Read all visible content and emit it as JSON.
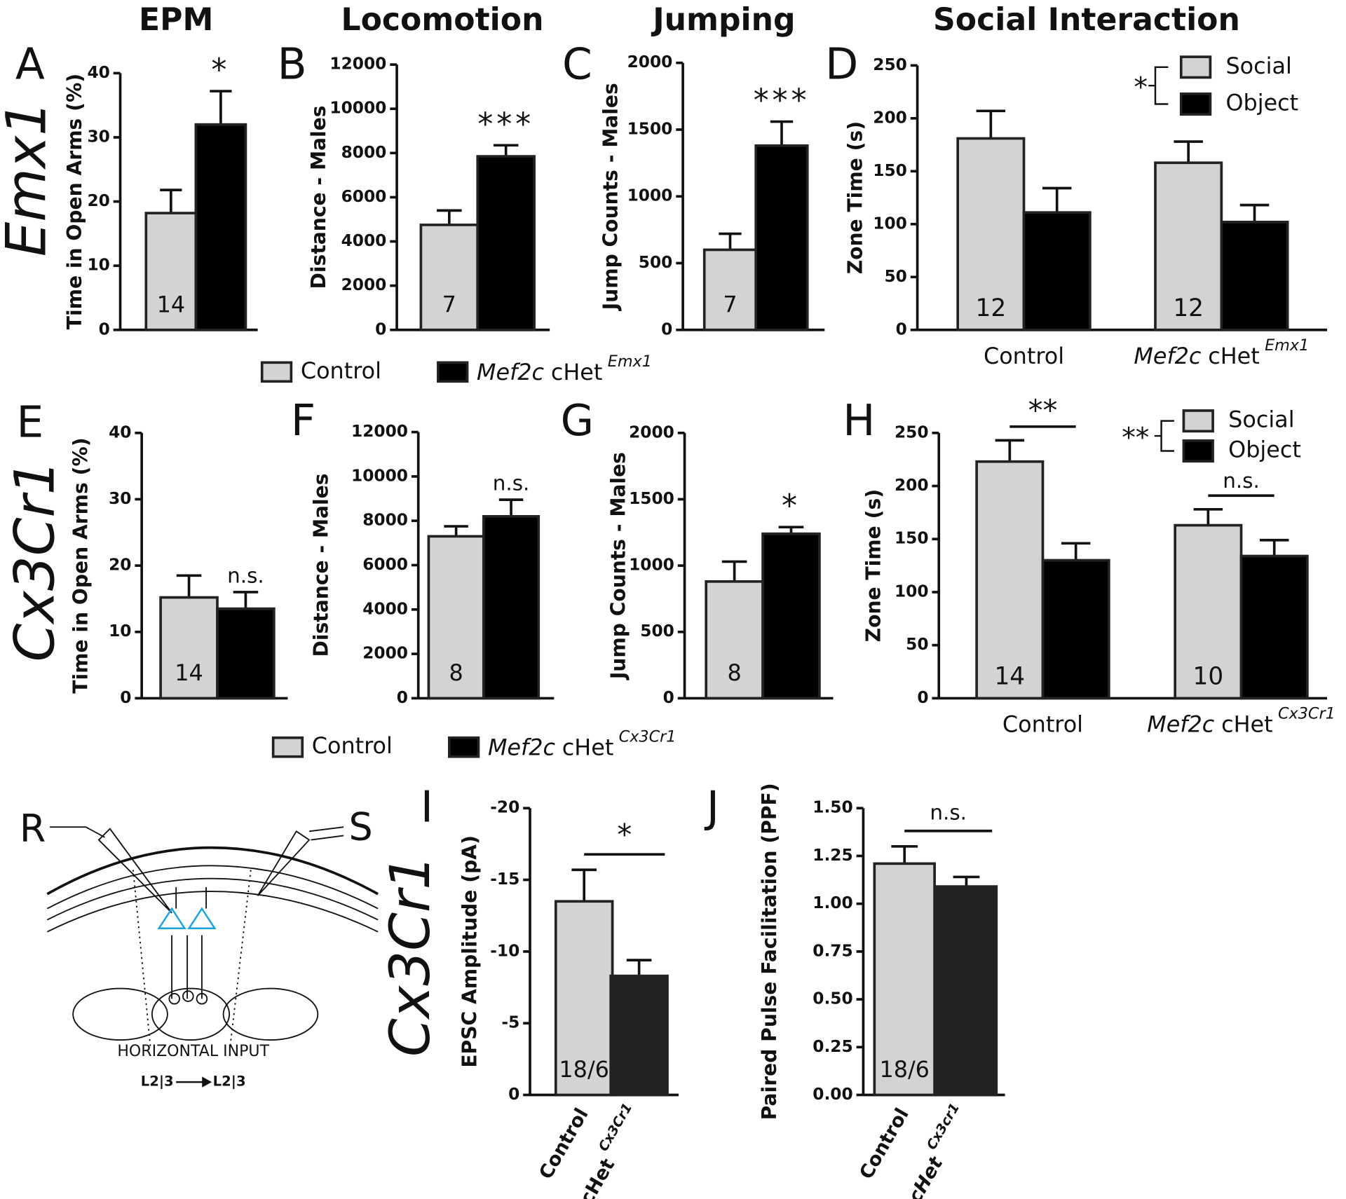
{
  "chart_data": [
    {
      "type": "bar",
      "panel_label": "A",
      "title": "EPM",
      "ylabel": "Time in Open Arms (%)",
      "ylim": [
        0,
        40
      ],
      "yticks": [
        0,
        10,
        20,
        30,
        40
      ],
      "values": [
        18.2,
        32
      ],
      "errors": [
        3.6,
        5.2
      ],
      "colors": [
        "#d3d3d3",
        "#000000"
      ],
      "n_labels": [
        "14"
      ],
      "significance": "*"
    },
    {
      "type": "bar",
      "panel_label": "B",
      "title": "Locomotion",
      "ylabel": "Distance - Males",
      "ylim": [
        0,
        12000
      ],
      "yticks": [
        0,
        2000,
        4000,
        6000,
        8000,
        10000,
        12000
      ],
      "values": [
        4750,
        7850
      ],
      "errors": [
        650,
        500
      ],
      "colors": [
        "#d3d3d3",
        "#000000"
      ],
      "n_labels": [
        "7"
      ],
      "significance": "***"
    },
    {
      "type": "bar",
      "panel_label": "C",
      "title": "Jumping",
      "ylabel": "Jump Counts - Males",
      "ylim": [
        0,
        2000
      ],
      "yticks": [
        0,
        500,
        1000,
        1500,
        2000
      ],
      "values": [
        600,
        1380
      ],
      "errors": [
        120,
        180
      ],
      "colors": [
        "#d3d3d3",
        "#000000"
      ],
      "n_labels": [
        "7"
      ],
      "significance": "***"
    },
    {
      "type": "grouped_bar",
      "panel_label": "D",
      "title": "Social Interaction",
      "ylabel": "Zone Time (s)",
      "ylim": [
        0,
        250
      ],
      "yticks": [
        0,
        50,
        100,
        150,
        200,
        250
      ],
      "categories": [
        "Control",
        {
          "gene": "Mef2c",
          "text": "cHet",
          "super": "Emx1"
        }
      ],
      "series": [
        {
          "name": "Social",
          "color": "#d3d3d3",
          "values": [
            181,
            158
          ],
          "errors": [
            26,
            20
          ]
        },
        {
          "name": "Object",
          "color": "#000000",
          "values": [
            111,
            102
          ],
          "errors": [
            23,
            16
          ]
        }
      ],
      "n_labels": [
        "12",
        "12"
      ],
      "legend_significance": "*"
    },
    {
      "type": "bar",
      "panel_label": "E",
      "ylabel": "Time in Open Arms (%)",
      "ylim": [
        0,
        40
      ],
      "yticks": [
        0,
        10,
        20,
        30,
        40
      ],
      "values": [
        15.2,
        13.5
      ],
      "errors": [
        3.3,
        2.5
      ],
      "colors": [
        "#d3d3d3",
        "#000000"
      ],
      "n_labels": [
        "14"
      ],
      "significance": "n.s."
    },
    {
      "type": "bar",
      "panel_label": "F",
      "ylabel": "Distance - Males",
      "ylim": [
        0,
        12000
      ],
      "yticks": [
        0,
        2000,
        4000,
        6000,
        8000,
        10000,
        12000
      ],
      "values": [
        7300,
        8200
      ],
      "errors": [
        450,
        750
      ],
      "colors": [
        "#d3d3d3",
        "#000000"
      ],
      "n_labels": [
        "8"
      ],
      "significance": "n.s."
    },
    {
      "type": "bar",
      "panel_label": "G",
      "ylabel": "Jump Counts - Males",
      "ylim": [
        0,
        2000
      ],
      "yticks": [
        0,
        500,
        1000,
        1500,
        2000
      ],
      "values": [
        880,
        1240
      ],
      "errors": [
        150,
        50
      ],
      "colors": [
        "#d3d3d3",
        "#000000"
      ],
      "n_labels": [
        "8"
      ],
      "significance": "*"
    },
    {
      "type": "grouped_bar",
      "panel_label": "H",
      "ylabel": "Zone Time (s)",
      "ylim": [
        0,
        250
      ],
      "yticks": [
        0,
        50,
        100,
        150,
        200,
        250
      ],
      "categories": [
        "Control",
        {
          "gene": "Mef2c",
          "text": "cHet",
          "super": "Cx3Cr1"
        }
      ],
      "series": [
        {
          "name": "Social",
          "color": "#d3d3d3",
          "values": [
            223,
            163
          ],
          "errors": [
            20,
            15
          ]
        },
        {
          "name": "Object",
          "color": "#000000",
          "values": [
            130,
            134
          ],
          "errors": [
            16,
            15
          ]
        }
      ],
      "n_labels": [
        "14",
        "10"
      ],
      "significance": [
        "**",
        "n.s."
      ],
      "legend_significance": "**"
    },
    {
      "type": "bar",
      "panel_label": "I",
      "ylabel": "EPSC Amplitude (pA)",
      "ylim": [
        0,
        -20
      ],
      "yticks": [
        0,
        -5,
        -10,
        -15,
        -20
      ],
      "categories": [
        "Control",
        {
          "text": "cHet",
          "super": "Cx3Cr1"
        }
      ],
      "values": [
        -13.5,
        -8.3
      ],
      "errors": [
        2.2,
        1.1
      ],
      "colors": [
        "#d3d3d3",
        "#222222"
      ],
      "n_labels": [
        "18/6"
      ],
      "significance": "*"
    },
    {
      "type": "bar",
      "panel_label": "J",
      "ylabel": "Paired Pulse Facilitation (PPF)",
      "ylim": [
        0,
        1.5
      ],
      "yticks": [
        {
          "value": 0,
          "label": "0.00"
        },
        {
          "value": 0.25,
          "label": "0.25"
        },
        {
          "value": 0.5,
          "label": "0.50"
        },
        {
          "value": 0.75,
          "label": "0.75"
        },
        {
          "value": 1,
          "label": "1.00"
        },
        {
          "value": 1.25,
          "label": "1.25"
        },
        {
          "value": 1.5,
          "label": "1.50"
        }
      ],
      "categories": [
        "Control",
        {
          "text": "cHet",
          "super": "Cx3cr1"
        }
      ],
      "values": [
        1.21,
        1.09
      ],
      "errors": [
        0.09,
        0.05
      ],
      "colors": [
        "#d3d3d3",
        "#222222"
      ],
      "n_labels": [
        "18/6"
      ],
      "significance": "n.s."
    }
  ],
  "shared_legends": [
    {
      "entries": [
        {
          "label": "Control",
          "color": "#d3d3d3"
        },
        {
          "gene": "Mef2c",
          "text": "cHet",
          "super": "Emx1",
          "color": "#000000"
        }
      ]
    },
    {
      "entries": [
        {
          "label": "Control",
          "color": "#d3d3d3"
        },
        {
          "gene": "Mef2c",
          "text": "cHet",
          "super": "Cx3Cr1",
          "color": "#000000"
        }
      ]
    }
  ],
  "row_labels": [
    "Emx1",
    "Cx3Cr1",
    "Cx3Cr1"
  ],
  "diagram": {
    "recording": "R",
    "stimulation": "S",
    "caption": "HORIZONTAL INPUT",
    "from": "L2|3",
    "to": "L2|3"
  }
}
